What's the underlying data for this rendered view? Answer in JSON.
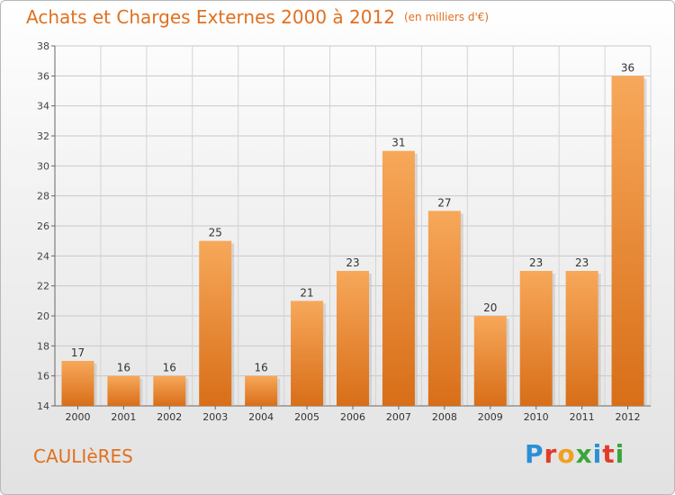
{
  "header": {
    "title": "Achats et Charges Externes 2000 à 2012",
    "unit": "(en milliers d'€)"
  },
  "footer": {
    "commune": "CAULIèRES",
    "logo": "Proxiti"
  },
  "colors": {
    "bar_light": "#f7a85a",
    "bar_dark": "#e07820",
    "title": "#e07020"
  },
  "chart_data": {
    "type": "bar",
    "title": "Achats et Charges Externes 2000 à 2012",
    "subtitle": "(en milliers d'€)",
    "categories": [
      "2000",
      "2001",
      "2002",
      "2003",
      "2004",
      "2005",
      "2006",
      "2007",
      "2008",
      "2009",
      "2010",
      "2011",
      "2012"
    ],
    "values": [
      17,
      16,
      16,
      25,
      16,
      21,
      23,
      31,
      27,
      20,
      23,
      23,
      36
    ],
    "ylim": [
      14,
      38
    ],
    "yticks": [
      14,
      16,
      18,
      20,
      22,
      24,
      26,
      28,
      30,
      32,
      34,
      36,
      38
    ],
    "grid": true
  }
}
